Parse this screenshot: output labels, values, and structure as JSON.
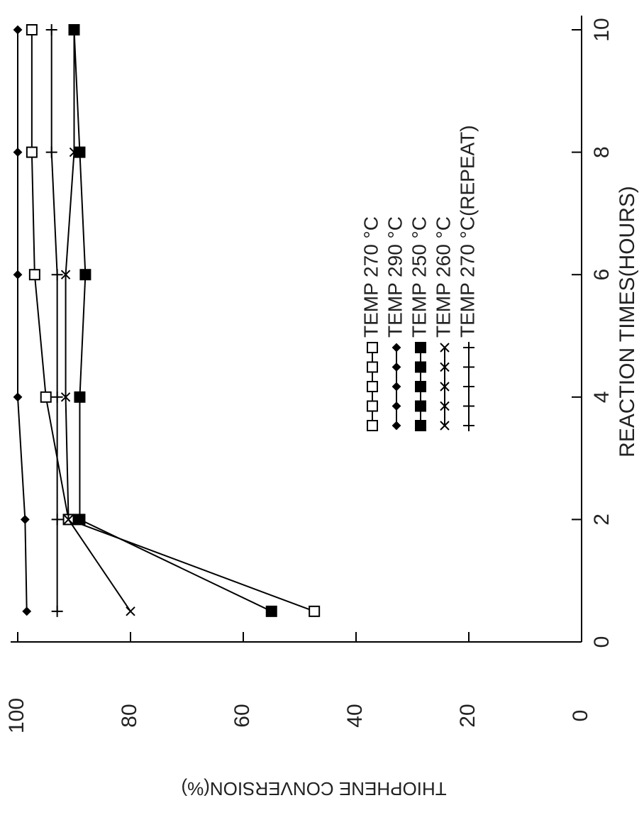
{
  "chart_data": {
    "type": "line",
    "x_label": "REACTION TIMES(HOURS)",
    "y_label": "THIOPHENE CONVERSION(%)",
    "x": [
      0.5,
      2,
      4,
      6,
      8,
      10
    ],
    "xlim": [
      0,
      10
    ],
    "xticks": [
      0,
      2,
      4,
      6,
      8,
      10
    ],
    "ylim": [
      0,
      100
    ],
    "yticks": [
      0,
      20,
      40,
      60,
      80,
      100
    ],
    "grid": false,
    "legend": "right",
    "series": [
      {
        "name": "TEMP 270 °C",
        "color": "#000000",
        "marker": "square-open",
        "values": [
          47.4,
          91,
          95,
          97,
          97.5,
          97.5
        ]
      },
      {
        "name": "TEMP 290 °C",
        "color": "#000000",
        "marker": "diamond",
        "values": [
          98.4,
          98.7,
          100,
          100,
          100,
          100
        ]
      },
      {
        "name": "TEMP 250 °C",
        "color": "#000000",
        "marker": "square-filled",
        "values": [
          55,
          89,
          89,
          88,
          89,
          90
        ]
      },
      {
        "name": "TEMP 260 °C",
        "color": "#000000",
        "marker": "cross",
        "values": [
          80,
          91,
          91.5,
          91.5,
          90,
          90
        ]
      },
      {
        "name": "TEMP 270 °C(REPEAT)",
        "color": "#000000",
        "marker": "plus",
        "values": [
          93,
          93,
          93,
          93,
          94,
          94
        ]
      }
    ]
  }
}
